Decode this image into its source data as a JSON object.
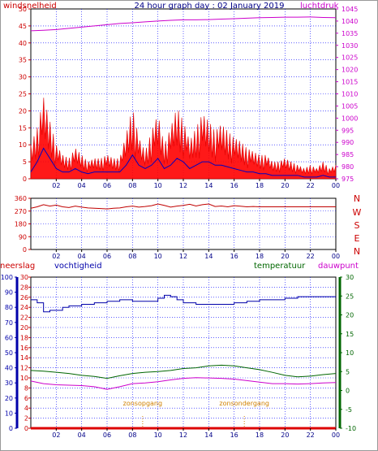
{
  "colors": {
    "wind": "#e00000",
    "gust": "#ff0000",
    "avgwind": "#0000c0",
    "pressure": "#cc00cc",
    "direction": "#c00000",
    "humidity": "#0000aa",
    "temperature": "#006600",
    "dewpoint": "#cc00cc",
    "rain": "#dd0000",
    "sun": "#d08000",
    "grid": "#0000ff",
    "axis": "#000000"
  },
  "chart_data": [
    {
      "type": "area",
      "title": "24 hour graph day : 02 January 2019",
      "left_label": "windsnelheid",
      "right_label": "luchtdruk",
      "left_axis": {
        "ticks": [
          0,
          5,
          10,
          15,
          20,
          25,
          30,
          35,
          40,
          45,
          50
        ],
        "range": [
          0,
          50
        ]
      },
      "right_axis": {
        "ticks": [
          975,
          980,
          985,
          990,
          995,
          1000,
          1005,
          1010,
          1015,
          1020,
          1025,
          1030,
          1035,
          1040,
          1045
        ],
        "range": [
          975,
          1045
        ]
      },
      "x_ticks": [
        "02",
        "04",
        "06",
        "08",
        "10",
        "12",
        "14",
        "16",
        "18",
        "20",
        "22",
        "00"
      ],
      "x_range": [
        0,
        24
      ],
      "grid": true,
      "series": [
        {
          "key": "gust",
          "axis": "left",
          "style": "spiky-area",
          "x": [
            0,
            0.5,
            1,
            1.5,
            2,
            2.5,
            3,
            3.5,
            4,
            4.5,
            5,
            5.5,
            6,
            6.5,
            7,
            7.5,
            8,
            8.5,
            9,
            9.5,
            10,
            10.5,
            11,
            11.5,
            12,
            12.5,
            13,
            13.5,
            14,
            14.5,
            15,
            15.5,
            16,
            16.5,
            17,
            17.5,
            18,
            18.5,
            19,
            19.5,
            20,
            20.5,
            21,
            21.5,
            22,
            22.5,
            23,
            23.5,
            24
          ],
          "values": [
            10,
            15,
            24,
            17,
            10,
            7,
            6,
            9,
            7,
            5,
            6,
            6,
            7,
            6,
            6,
            13,
            21,
            12,
            8,
            14,
            19,
            10,
            15,
            21,
            17,
            11,
            15,
            19,
            17,
            14,
            16,
            14,
            12,
            11,
            9,
            8,
            7,
            7,
            5,
            5,
            6,
            5,
            4,
            3,
            4,
            3,
            5,
            3,
            4
          ]
        },
        {
          "key": "avgwind",
          "axis": "left",
          "style": "line",
          "x": [
            0,
            0.5,
            1,
            1.5,
            2,
            2.5,
            3,
            3.5,
            4,
            4.5,
            5,
            5.5,
            6,
            6.5,
            7,
            7.5,
            8,
            8.5,
            9,
            9.5,
            10,
            10.5,
            11,
            11.5,
            12,
            12.5,
            13,
            13.5,
            14,
            14.5,
            15,
            15.5,
            16,
            16.5,
            17,
            17.5,
            18,
            18.5,
            19,
            19.5,
            20,
            20.5,
            21,
            21.5,
            22,
            22.5,
            23,
            23.5,
            24
          ],
          "values": [
            2,
            5,
            9,
            6,
            3,
            2,
            2,
            3,
            2,
            1.5,
            2,
            2,
            2,
            2,
            2,
            4,
            7,
            4,
            3,
            4,
            6,
            3,
            4,
            6,
            5,
            3,
            4,
            5,
            5,
            4,
            4,
            3.5,
            3,
            2.5,
            2,
            2,
            1.5,
            1.5,
            1,
            1,
            1,
            1,
            1,
            0.5,
            0.5,
            0.5,
            1,
            0.5,
            0.5
          ]
        },
        {
          "key": "pressure",
          "axis": "right",
          "style": "line",
          "x": [
            0,
            1,
            2,
            3,
            4,
            5,
            6,
            7,
            8,
            9,
            10,
            11,
            12,
            13,
            14,
            15,
            16,
            17,
            18,
            19,
            20,
            21,
            22,
            23,
            24
          ],
          "values": [
            1036,
            1036.2,
            1036.5,
            1037,
            1037.5,
            1038,
            1038.5,
            1039,
            1039.3,
            1039.7,
            1040,
            1040.3,
            1040.5,
            1040.5,
            1040.6,
            1040.8,
            1041,
            1041.2,
            1041.4,
            1041.5,
            1041.6,
            1041.6,
            1041.7,
            1041.5,
            1041.4
          ]
        }
      ]
    },
    {
      "type": "line",
      "left_axis": {
        "ticks": [
          0,
          90,
          180,
          270,
          360
        ],
        "range": [
          0,
          360
        ]
      },
      "compass_labels": [
        "N",
        "W",
        "S",
        "E",
        "N"
      ],
      "x_ticks": [
        "02",
        "04",
        "06",
        "08",
        "10",
        "12",
        "14",
        "16",
        "18",
        "20",
        "22",
        "00"
      ],
      "x_range": [
        0,
        24
      ],
      "grid": true,
      "series": [
        {
          "key": "direction",
          "style": "line",
          "x": [
            0,
            0.5,
            1,
            1.5,
            2,
            2.5,
            3,
            3.5,
            4,
            4.5,
            5,
            5.5,
            6,
            6.5,
            7,
            7.5,
            8,
            8.5,
            9,
            9.5,
            10,
            10.5,
            11,
            11.5,
            12,
            12.5,
            13,
            13.5,
            14,
            14.5,
            15,
            15.5,
            16,
            16.5,
            17,
            17.5,
            18,
            18.5,
            19,
            20,
            21,
            22,
            23,
            24
          ],
          "values": [
            290,
            300,
            315,
            305,
            312,
            300,
            295,
            305,
            298,
            292,
            290,
            288,
            285,
            290,
            292,
            300,
            305,
            298,
            302,
            308,
            320,
            310,
            298,
            305,
            310,
            318,
            306,
            315,
            320,
            302,
            306,
            300,
            308,
            304,
            300,
            302,
            300,
            300,
            300,
            300,
            300,
            300,
            300,
            300
          ]
        }
      ]
    },
    {
      "type": "line",
      "labels": {
        "rain": "neerslag",
        "humidity": "vochtigheid",
        "temperature": "temperatuur",
        "dewpoint": "dauwpunt"
      },
      "sun_labels": {
        "sunrise": "zonsopgang",
        "sunset": "zonsondergang"
      },
      "sun_times": {
        "sunrise": 8.8,
        "sunset": 16.8
      },
      "humidity_axis": {
        "ticks": [
          0,
          10,
          20,
          30,
          40,
          50,
          60,
          70,
          80,
          90,
          100
        ],
        "range": [
          0,
          100
        ]
      },
      "rain_axis": {
        "ticks": [
          0,
          2,
          4,
          6,
          8,
          10,
          12,
          14,
          16,
          18,
          20,
          22,
          24,
          26,
          28,
          30
        ],
        "range": [
          0,
          30
        ]
      },
      "temp_axis": {
        "ticks": [
          -10,
          -5,
          0,
          5,
          10,
          15,
          20,
          25,
          30
        ],
        "range": [
          -10,
          30
        ]
      },
      "x_ticks": [
        "02",
        "04",
        "06",
        "08",
        "10",
        "12",
        "14",
        "16",
        "18",
        "20",
        "22",
        "00"
      ],
      "x_range": [
        0,
        24
      ],
      "grid": true,
      "series": [
        {
          "key": "humidity",
          "axis": "humidity",
          "style": "step",
          "x": [
            0,
            0.5,
            1,
            1.5,
            2,
            2.5,
            3,
            4,
            5,
            6,
            7,
            8,
            9,
            10,
            10.5,
            11,
            11.5,
            12,
            13,
            14,
            15,
            16,
            17,
            18,
            19,
            20,
            21,
            22,
            23,
            24
          ],
          "values": [
            85,
            83,
            77,
            78,
            78,
            80,
            81,
            82,
            83,
            84,
            85,
            84,
            84,
            86,
            88,
            87,
            85,
            83,
            82,
            82,
            82,
            83,
            84,
            85,
            85,
            86,
            87,
            87,
            87,
            87
          ]
        },
        {
          "key": "temperature",
          "axis": "temp",
          "style": "line",
          "x": [
            0,
            1,
            2,
            3,
            4,
            5,
            6,
            7,
            8,
            9,
            10,
            11,
            12,
            13,
            14,
            15,
            16,
            17,
            18,
            19,
            20,
            21,
            22,
            23,
            24
          ],
          "values": [
            5.3,
            5.1,
            4.8,
            4.5,
            4.0,
            3.7,
            3.2,
            3.9,
            4.5,
            4.8,
            5.0,
            5.3,
            5.8,
            6.0,
            6.5,
            6.7,
            6.5,
            6.0,
            5.5,
            4.8,
            4.0,
            3.6,
            3.8,
            4.2,
            4.5
          ]
        },
        {
          "key": "dewpoint",
          "axis": "temp",
          "style": "line",
          "x": [
            0,
            1,
            2,
            3,
            4,
            5,
            6,
            7,
            8,
            9,
            10,
            11,
            12,
            13,
            14,
            15,
            16,
            17,
            18,
            19,
            20,
            21,
            22,
            23,
            24
          ],
          "values": [
            2.5,
            1.8,
            1.5,
            1.4,
            1.3,
            1.0,
            0.3,
            1.0,
            1.8,
            2.0,
            2.3,
            2.8,
            3.2,
            3.4,
            3.3,
            3.2,
            3.0,
            2.6,
            2.2,
            1.8,
            1.8,
            1.7,
            1.8,
            2.0,
            2.1
          ]
        },
        {
          "key": "rain",
          "axis": "rain",
          "style": "line",
          "x": [
            0,
            24
          ],
          "values": [
            0,
            0
          ]
        }
      ]
    }
  ]
}
